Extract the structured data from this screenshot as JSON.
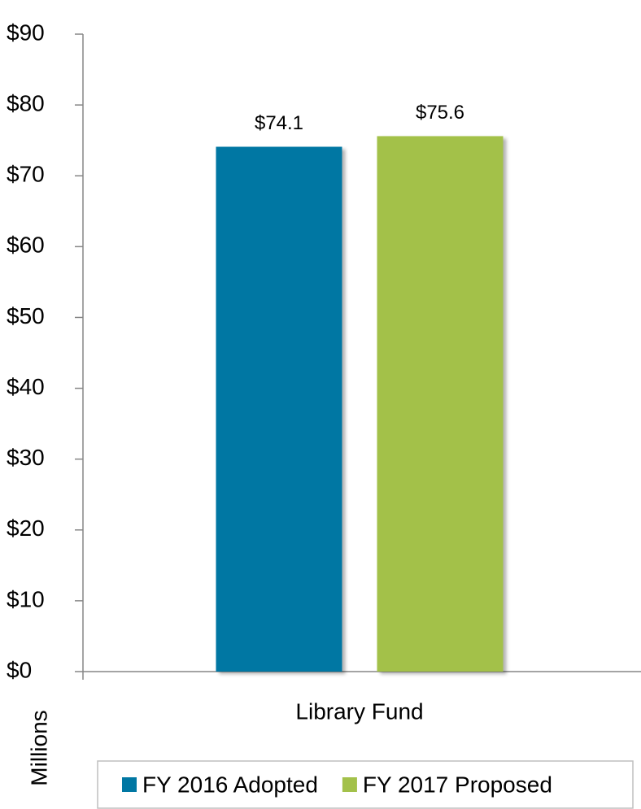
{
  "chart_data": {
    "type": "bar",
    "y_label": "Millions",
    "categories": [
      "Library Fund"
    ],
    "series": [
      {
        "name": "FY 2016 Adopted",
        "color": "#0077a3",
        "values": [
          74.1
        ],
        "value_labels": [
          "$74.1"
        ]
      },
      {
        "name": "FY 2017 Proposed",
        "color": "#a3c14a",
        "values": [
          75.6
        ],
        "value_labels": [
          "$75.6"
        ]
      }
    ],
    "ylim": [
      0,
      90
    ],
    "yticks": [
      {
        "value": 0,
        "label": "$0"
      },
      {
        "value": 10,
        "label": "$10"
      },
      {
        "value": 20,
        "label": "$20"
      },
      {
        "value": 30,
        "label": "$30"
      },
      {
        "value": 40,
        "label": "$40"
      },
      {
        "value": 50,
        "label": "$50"
      },
      {
        "value": 60,
        "label": "$60"
      },
      {
        "value": 70,
        "label": "$70"
      },
      {
        "value": 80,
        "label": "$80"
      },
      {
        "value": 90,
        "label": "$90"
      }
    ],
    "grid": false,
    "legend": "bottom"
  }
}
